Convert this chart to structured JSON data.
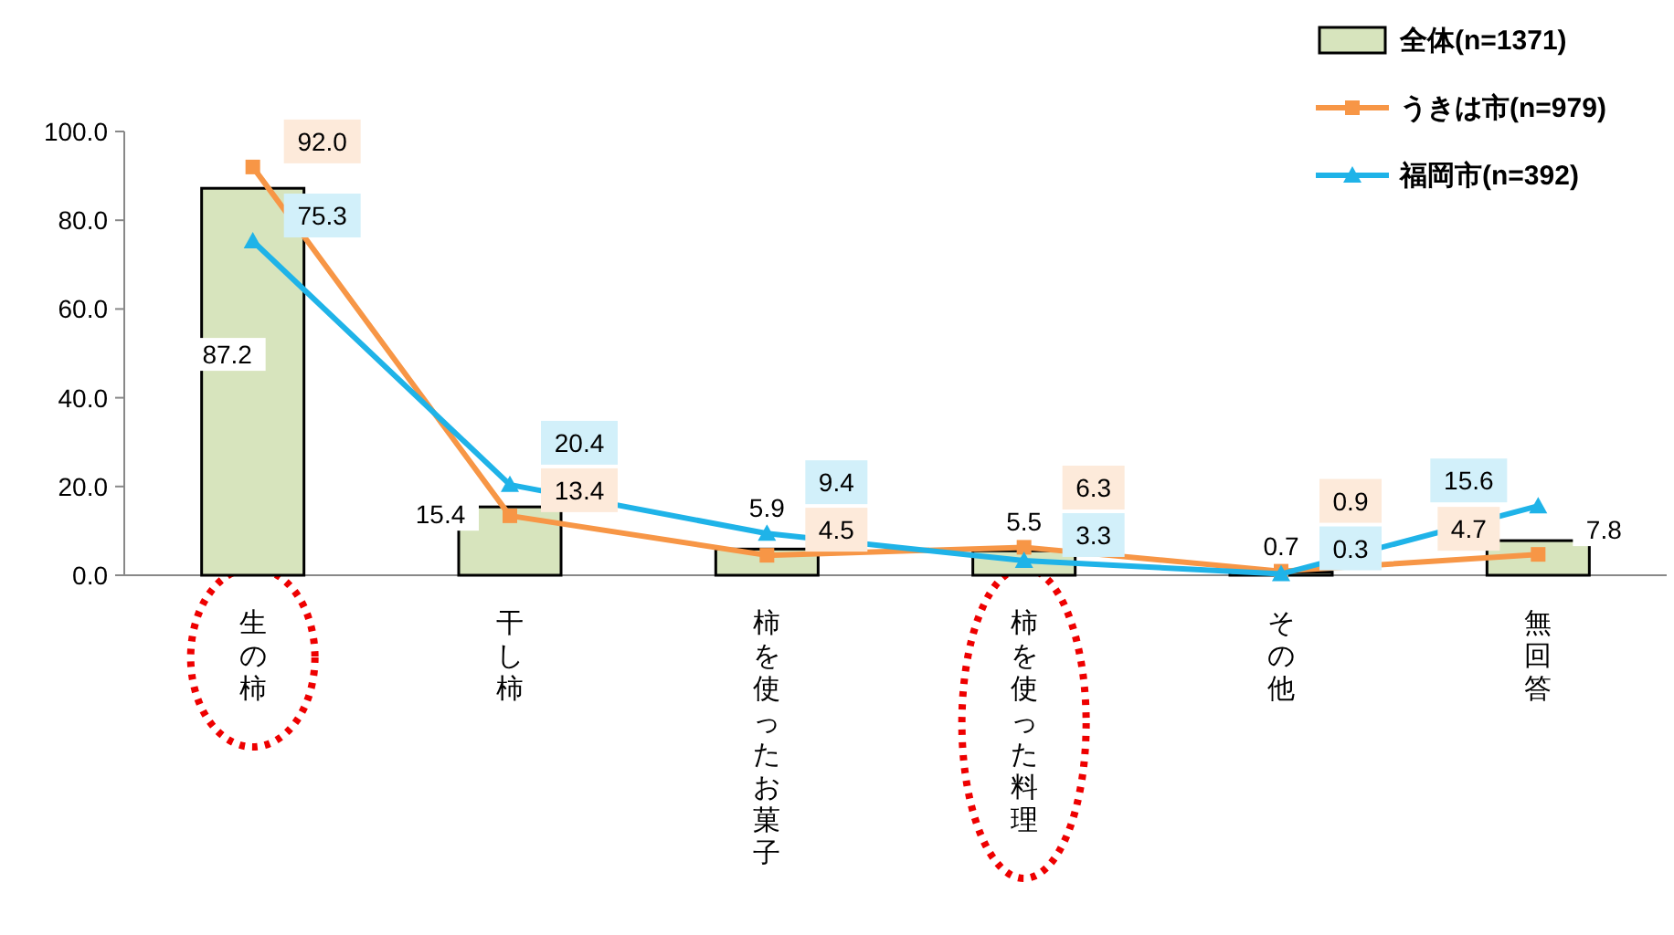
{
  "chart_data": {
    "type": "bar",
    "categories": [
      "生の柿",
      "干し柿",
      "柿を使ったお菓子",
      "柿を使った料理",
      "その他",
      "無回答"
    ],
    "ylim": [
      0,
      100
    ],
    "yticks": [
      {
        "value": 0,
        "label": "0.0"
      },
      {
        "value": 20,
        "label": "20.0"
      },
      {
        "value": 40,
        "label": "40.0"
      },
      {
        "value": 60,
        "label": "60.0"
      },
      {
        "value": 80,
        "label": "80.0"
      },
      {
        "value": 100,
        "label": "100.0"
      }
    ],
    "grid": false,
    "legend": "top right",
    "series": [
      {
        "name": "全体(n=1371)",
        "color": "#d7e4bd",
        "values": [
          87.2,
          15.4,
          5.9,
          5.5,
          0.7,
          7.8
        ],
        "value_labels": [
          "87.2",
          "15.4",
          "5.9",
          "5.5",
          "0.7",
          "7.8"
        ]
      },
      {
        "name": "うきは市(n=979)",
        "type": "line",
        "color": "#f79646",
        "marker": "square",
        "values": [
          92.0,
          13.4,
          4.5,
          6.3,
          0.9,
          4.7
        ],
        "value_labels": [
          "92.0",
          "13.4",
          "4.5",
          "6.3",
          "0.9",
          "4.7"
        ]
      },
      {
        "name": "福岡市(n=392)",
        "type": "line",
        "color": "#1fb3e8",
        "marker": "triangle",
        "values": [
          75.3,
          20.4,
          9.4,
          3.3,
          0.3,
          15.6
        ],
        "value_labels": [
          "75.3",
          "20.4",
          "9.4",
          "3.3",
          "0.3",
          "15.6"
        ]
      }
    ]
  }
}
